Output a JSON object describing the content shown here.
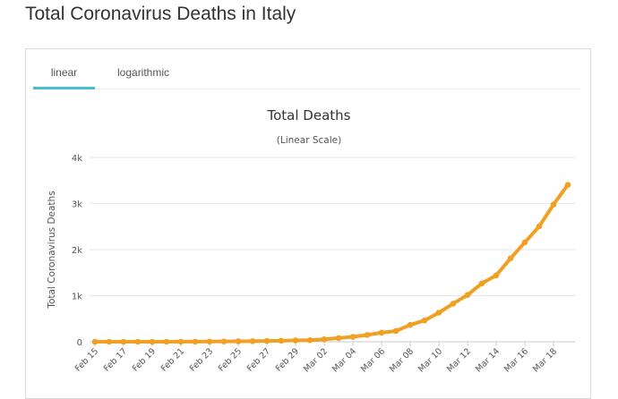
{
  "page": {
    "title": "Total Coronavirus Deaths in Italy"
  },
  "tabs": [
    {
      "label": "linear",
      "active": true
    },
    {
      "label": "logarithmic",
      "active": false
    }
  ],
  "colors": {
    "line": "#f0a022",
    "tab_accent": "#45bfd8",
    "grid": "#e6e6e6"
  },
  "chart_data": {
    "type": "line",
    "title": "Total Deaths",
    "subtitle": "(Linear Scale)",
    "xlabel": "",
    "ylabel": "Total Coronavirus Deaths",
    "ylim": [
      0,
      4000
    ],
    "yticks": [
      0,
      1000,
      2000,
      3000,
      4000
    ],
    "ytick_labels": [
      "0",
      "1k",
      "2k",
      "3k",
      "4k"
    ],
    "grid": true,
    "x": [
      "Feb 15",
      "Feb 16",
      "Feb 17",
      "Feb 18",
      "Feb 19",
      "Feb 20",
      "Feb 21",
      "Feb 22",
      "Feb 23",
      "Feb 24",
      "Feb 25",
      "Feb 26",
      "Feb 27",
      "Feb 28",
      "Feb 29",
      "Mar 01",
      "Mar 02",
      "Mar 03",
      "Mar 04",
      "Mar 05",
      "Mar 06",
      "Mar 07",
      "Mar 08",
      "Mar 09",
      "Mar 10",
      "Mar 11",
      "Mar 12",
      "Mar 13",
      "Mar 14",
      "Mar 15",
      "Mar 16",
      "Mar 17",
      "Mar 18",
      "Mar 19"
    ],
    "xtick_labels": [
      "Feb 15",
      "Feb 17",
      "Feb 19",
      "Feb 21",
      "Feb 23",
      "Feb 25",
      "Feb 27",
      "Feb 29",
      "Mar 02",
      "Mar 04",
      "Mar 06",
      "Mar 08",
      "Mar 10",
      "Mar 12",
      "Mar 14",
      "Mar 16",
      "Mar 18"
    ],
    "series": [
      {
        "values": [
          0,
          0,
          0,
          0,
          0,
          0,
          1,
          2,
          3,
          7,
          10,
          12,
          17,
          21,
          29,
          34,
          52,
          79,
          107,
          148,
          197,
          233,
          366,
          463,
          631,
          827,
          1016,
          1266,
          1441,
          1809,
          2158,
          2503,
          2978,
          3405
        ]
      }
    ]
  }
}
